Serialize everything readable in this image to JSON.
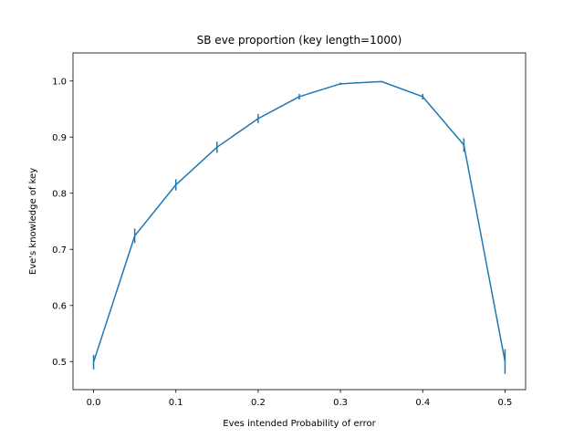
{
  "chart_data": {
    "type": "line",
    "title": "SB eve proportion (key length=1000)",
    "xlabel": "Eves intended Probability of error",
    "ylabel": "Eve's knowledge of key",
    "xlim": [
      -0.025,
      0.525
    ],
    "ylim": [
      0.45,
      1.05
    ],
    "x_ticks": [
      0.0,
      0.1,
      0.2,
      0.3,
      0.4,
      0.5
    ],
    "x_tick_labels": [
      "0.0",
      "0.1",
      "0.2",
      "0.3",
      "0.4",
      "0.5"
    ],
    "y_ticks": [
      0.5,
      0.6,
      0.7,
      0.8,
      0.9,
      1.0
    ],
    "y_tick_labels": [
      "0.5",
      "0.6",
      "0.7",
      "0.8",
      "0.9",
      "1.0"
    ],
    "grid": false,
    "line_color": "#1f77b4",
    "series": [
      {
        "x": [
          0.0,
          0.05,
          0.1,
          0.15,
          0.2,
          0.25,
          0.3,
          0.35,
          0.4,
          0.45,
          0.5
        ],
        "y": [
          0.499,
          0.724,
          0.815,
          0.882,
          0.933,
          0.972,
          0.995,
          0.999,
          0.972,
          0.886,
          0.5
        ],
        "err": [
          0.013,
          0.013,
          0.01,
          0.01,
          0.008,
          0.005,
          0.002,
          0.001,
          0.005,
          0.012,
          0.022
        ]
      }
    ]
  }
}
